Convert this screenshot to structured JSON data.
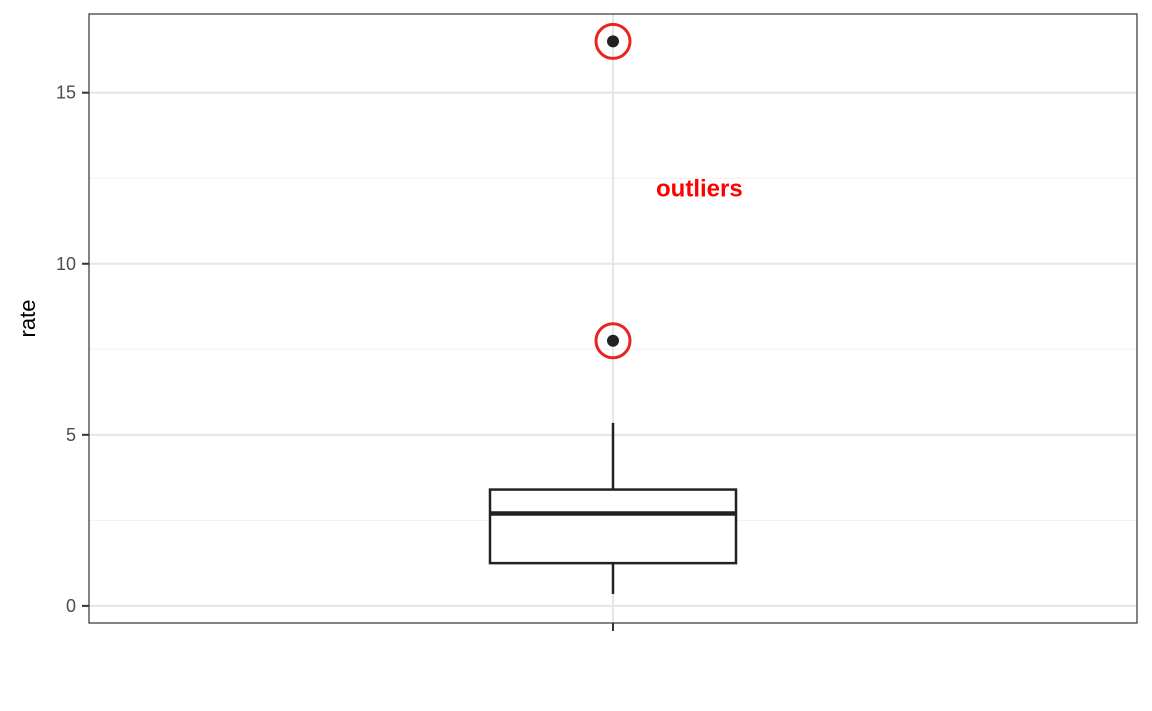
{
  "chart_data": {
    "type": "boxplot",
    "ylabel": "rate",
    "xlabel": "",
    "ylim": [
      -0.5,
      17.3
    ],
    "y_ticks": [
      0,
      5,
      10,
      15
    ],
    "y_tick_labels": [
      "0",
      "5",
      "10",
      "15"
    ],
    "grid": true,
    "box": {
      "whisker_low": 0.35,
      "q1": 1.25,
      "median": 2.7,
      "q3": 3.4,
      "whisker_high": 5.35
    },
    "outliers": [
      16.5,
      7.75
    ],
    "annotation": {
      "text": "outliers",
      "y": 12.2
    },
    "colors": {
      "box": "#222222",
      "grid_major": "#e6e6e6",
      "grid_minor": "#f0f0f0",
      "panel_border": "#333333",
      "annotation": "#ff0000",
      "outlier_circle": "#e8251f",
      "point": "#222222",
      "tick_label": "#4d4d4d"
    }
  }
}
